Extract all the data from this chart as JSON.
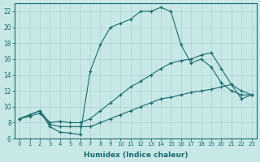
{
  "xlabel": "Humidex (Indice chaleur)",
  "background_color": "#c8e8e8",
  "grid_color": "#b0d4d4",
  "line_color": "#1a6b6b",
  "xlim": [
    -0.5,
    23.5
  ],
  "ylim": [
    6,
    23
  ],
  "xticks": [
    0,
    1,
    2,
    3,
    4,
    5,
    6,
    7,
    8,
    9,
    10,
    11,
    12,
    13,
    14,
    15,
    16,
    17,
    18,
    19,
    20,
    21,
    22,
    23
  ],
  "yticks": [
    6,
    8,
    10,
    12,
    14,
    16,
    18,
    20,
    22
  ],
  "peak_x": [
    0,
    1,
    2,
    3,
    4,
    5,
    6,
    7,
    8,
    9,
    10,
    11,
    12,
    13,
    14,
    15,
    16,
    17,
    18,
    19,
    20,
    21,
    22,
    23
  ],
  "peak_y": [
    8.5,
    9.0,
    9.5,
    7.5,
    6.8,
    6.7,
    6.5,
    14.5,
    17.8,
    20.0,
    20.5,
    21.0,
    22.0,
    22.0,
    22.5,
    22.0,
    17.8,
    15.5,
    16.0,
    15.0,
    13.0,
    12.0,
    11.5,
    11.5
  ],
  "mid_x": [
    0,
    1,
    2,
    3,
    4,
    5,
    6,
    7,
    8,
    9,
    10,
    11,
    12,
    13,
    14,
    15,
    16,
    17,
    18,
    19,
    20,
    21,
    22,
    23
  ],
  "mid_y": [
    8.5,
    9.0,
    9.5,
    8.0,
    8.2,
    8.0,
    8.0,
    8.5,
    9.5,
    10.5,
    11.5,
    12.5,
    13.2,
    14.0,
    14.8,
    15.5,
    15.8,
    16.0,
    16.5,
    16.8,
    14.8,
    12.8,
    12.0,
    11.5
  ],
  "bot_x": [
    0,
    1,
    2,
    3,
    4,
    5,
    6,
    7,
    8,
    9,
    10,
    11,
    12,
    13,
    14,
    15,
    16,
    17,
    18,
    19,
    20,
    21,
    22,
    23
  ],
  "bot_y": [
    8.5,
    8.8,
    9.2,
    7.8,
    7.5,
    7.5,
    7.5,
    7.5,
    8.0,
    8.5,
    9.0,
    9.5,
    10.0,
    10.5,
    11.0,
    11.2,
    11.5,
    11.8,
    12.0,
    12.2,
    12.5,
    12.8,
    11.0,
    11.5
  ]
}
